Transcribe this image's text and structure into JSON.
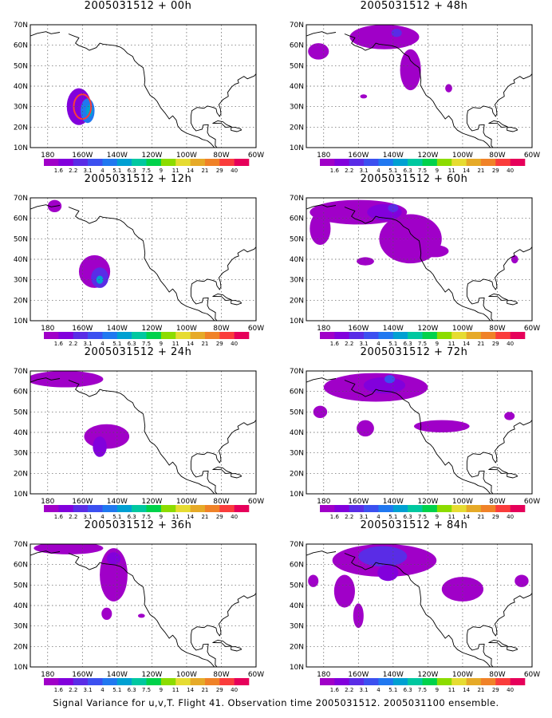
{
  "caption": "Signal Variance for u,v,T. Flight 41. Observation time 2005031512. 2005031100 ensemble.",
  "lat_labels": [
    "70N",
    "60N",
    "50N",
    "40N",
    "30N",
    "20N",
    "10N"
  ],
  "lon_labels": [
    "180",
    "160W",
    "140W",
    "120W",
    "100W",
    "80W",
    "60W"
  ],
  "map_extent": {
    "lon_min": -190,
    "lon_max": -60,
    "lat_min": 10,
    "lat_max": 70
  },
  "colorbar": {
    "labels": [
      "1.6",
      "2.2",
      "3.1",
      "4",
      "5.1",
      "6.3",
      "7.5",
      "9",
      "11",
      "14",
      "21",
      "29",
      "40"
    ],
    "colors": [
      "#a000c8",
      "#8200dc",
      "#5a2ce6",
      "#3c50f0",
      "#2078f0",
      "#00a0d2",
      "#00c8a0",
      "#00d24b",
      "#8cdc00",
      "#e6dc32",
      "#e6aa28",
      "#f08228",
      "#fa3c3c",
      "#e6005a"
    ]
  },
  "panels": [
    {
      "title": "2005031512 + 00h",
      "blobs": [
        {
          "lon": -162,
          "lat": 30,
          "rx": 7,
          "ry": 9,
          "level": 1
        },
        {
          "lon": -157,
          "lat": 28,
          "rx": 4,
          "ry": 6,
          "level": 4
        },
        {
          "lon": -156,
          "lat": 28,
          "rx": 2,
          "ry": 3,
          "level": 5
        }
      ],
      "rings": [
        {
          "lon": -160,
          "lat": 30,
          "rx": 5,
          "ry": 6,
          "color": "#fa3c3c"
        }
      ]
    },
    {
      "title": "2005031512 + 12h",
      "blobs": [
        {
          "lon": -176,
          "lat": 66,
          "rx": 4,
          "ry": 3,
          "level": 0
        },
        {
          "lon": -153,
          "lat": 34,
          "rx": 9,
          "ry": 8,
          "level": 0
        },
        {
          "lon": -150,
          "lat": 31,
          "rx": 5,
          "ry": 5,
          "level": 2
        },
        {
          "lon": -150,
          "lat": 30,
          "rx": 2,
          "ry": 2,
          "level": 5
        }
      ],
      "rings": []
    },
    {
      "title": "2005031512 + 24h",
      "blobs": [
        {
          "lon": -170,
          "lat": 66,
          "rx": 22,
          "ry": 4,
          "level": 0
        },
        {
          "lon": -146,
          "lat": 38,
          "rx": 13,
          "ry": 6,
          "level": 0
        },
        {
          "lon": -150,
          "lat": 33,
          "rx": 4,
          "ry": 5,
          "level": 1
        }
      ],
      "rings": []
    },
    {
      "title": "2005031512 + 36h",
      "blobs": [
        {
          "lon": -168,
          "lat": 68,
          "rx": 20,
          "ry": 3,
          "level": 0
        },
        {
          "lon": -142,
          "lat": 55,
          "rx": 8,
          "ry": 13,
          "level": 0
        },
        {
          "lon": -142,
          "lat": 63,
          "rx": 4,
          "ry": 3,
          "level": 1
        },
        {
          "lon": -146,
          "lat": 36,
          "rx": 3,
          "ry": 3,
          "level": 0
        },
        {
          "lon": -126,
          "lat": 35,
          "rx": 2,
          "ry": 1,
          "level": 0
        }
      ],
      "rings": []
    },
    {
      "title": "2005031512 + 48h",
      "blobs": [
        {
          "lon": -145,
          "lat": 64,
          "rx": 20,
          "ry": 6,
          "level": 0
        },
        {
          "lon": -183,
          "lat": 57,
          "rx": 6,
          "ry": 4,
          "level": 0
        },
        {
          "lon": -130,
          "lat": 48,
          "rx": 6,
          "ry": 10,
          "level": 0
        },
        {
          "lon": -138,
          "lat": 66,
          "rx": 3,
          "ry": 2,
          "level": 2
        },
        {
          "lon": -157,
          "lat": 35,
          "rx": 2,
          "ry": 1,
          "level": 0
        },
        {
          "lon": -108,
          "lat": 39,
          "rx": 2,
          "ry": 2,
          "level": 0
        }
      ],
      "rings": []
    },
    {
      "title": "2005031512 + 60h",
      "blobs": [
        {
          "lon": -160,
          "lat": 63,
          "rx": 28,
          "ry": 6,
          "level": 0
        },
        {
          "lon": -182,
          "lat": 55,
          "rx": 6,
          "ry": 8,
          "level": 0
        },
        {
          "lon": -130,
          "lat": 50,
          "rx": 18,
          "ry": 12,
          "level": 0
        },
        {
          "lon": -145,
          "lat": 63,
          "rx": 10,
          "ry": 4,
          "level": 1
        },
        {
          "lon": -140,
          "lat": 65,
          "rx": 3,
          "ry": 2,
          "level": 2
        },
        {
          "lon": -156,
          "lat": 39,
          "rx": 5,
          "ry": 2,
          "level": 0
        },
        {
          "lon": -116,
          "lat": 44,
          "rx": 8,
          "ry": 3,
          "level": 0
        },
        {
          "lon": -70,
          "lat": 40,
          "rx": 2,
          "ry": 2,
          "level": 0
        }
      ],
      "rings": []
    },
    {
      "title": "2005031512 + 72h",
      "blobs": [
        {
          "lon": -150,
          "lat": 62,
          "rx": 30,
          "ry": 7,
          "level": 0
        },
        {
          "lon": -145,
          "lat": 63,
          "rx": 12,
          "ry": 4,
          "level": 1
        },
        {
          "lon": -142,
          "lat": 66,
          "rx": 3,
          "ry": 2,
          "level": 3
        },
        {
          "lon": -112,
          "lat": 43,
          "rx": 16,
          "ry": 3,
          "level": 0
        },
        {
          "lon": -156,
          "lat": 42,
          "rx": 5,
          "ry": 4,
          "level": 0
        },
        {
          "lon": -182,
          "lat": 50,
          "rx": 4,
          "ry": 3,
          "level": 0
        },
        {
          "lon": -73,
          "lat": 48,
          "rx": 3,
          "ry": 2,
          "level": 0
        }
      ],
      "rings": []
    },
    {
      "title": "2005031512 + 84h",
      "blobs": [
        {
          "lon": -145,
          "lat": 62,
          "rx": 30,
          "ry": 8,
          "level": 0
        },
        {
          "lon": -146,
          "lat": 64,
          "rx": 14,
          "ry": 5,
          "level": 2
        },
        {
          "lon": -143,
          "lat": 56,
          "rx": 6,
          "ry": 4,
          "level": 1
        },
        {
          "lon": -168,
          "lat": 47,
          "rx": 6,
          "ry": 8,
          "level": 0
        },
        {
          "lon": -160,
          "lat": 35,
          "rx": 3,
          "ry": 6,
          "level": 0
        },
        {
          "lon": -100,
          "lat": 48,
          "rx": 12,
          "ry": 6,
          "level": 0
        },
        {
          "lon": -186,
          "lat": 52,
          "rx": 3,
          "ry": 3,
          "level": 0
        },
        {
          "lon": -66,
          "lat": 52,
          "rx": 4,
          "ry": 3,
          "level": 0
        }
      ],
      "rings": []
    }
  ]
}
